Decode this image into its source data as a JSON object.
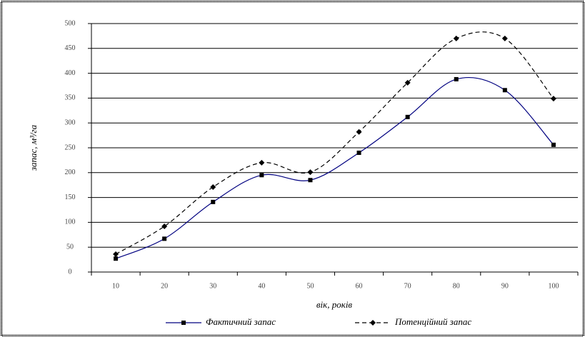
{
  "chart_data": {
    "type": "line",
    "x_label": "вік, років",
    "y_label": "запас, м³/га",
    "categories": [
      "10",
      "20",
      "30",
      "40",
      "50",
      "60",
      "70",
      "80",
      "90",
      "100"
    ],
    "series": [
      {
        "name": "Фактичний запас",
        "color": "#000080",
        "marker": "square",
        "dash": false,
        "values": [
          27,
          67,
          141,
          195,
          185,
          240,
          312,
          388,
          366,
          256
        ]
      },
      {
        "name": "Потенційний запас",
        "color": "#000000",
        "marker": "diamond",
        "dash": true,
        "values": [
          36,
          92,
          171,
          220,
          201,
          282,
          381,
          470,
          470,
          349
        ]
      }
    ],
    "ylim": [
      0,
      500
    ],
    "yticks": [
      0,
      50,
      100,
      150,
      200,
      250,
      300,
      350,
      400,
      450,
      500
    ],
    "grid": true
  }
}
